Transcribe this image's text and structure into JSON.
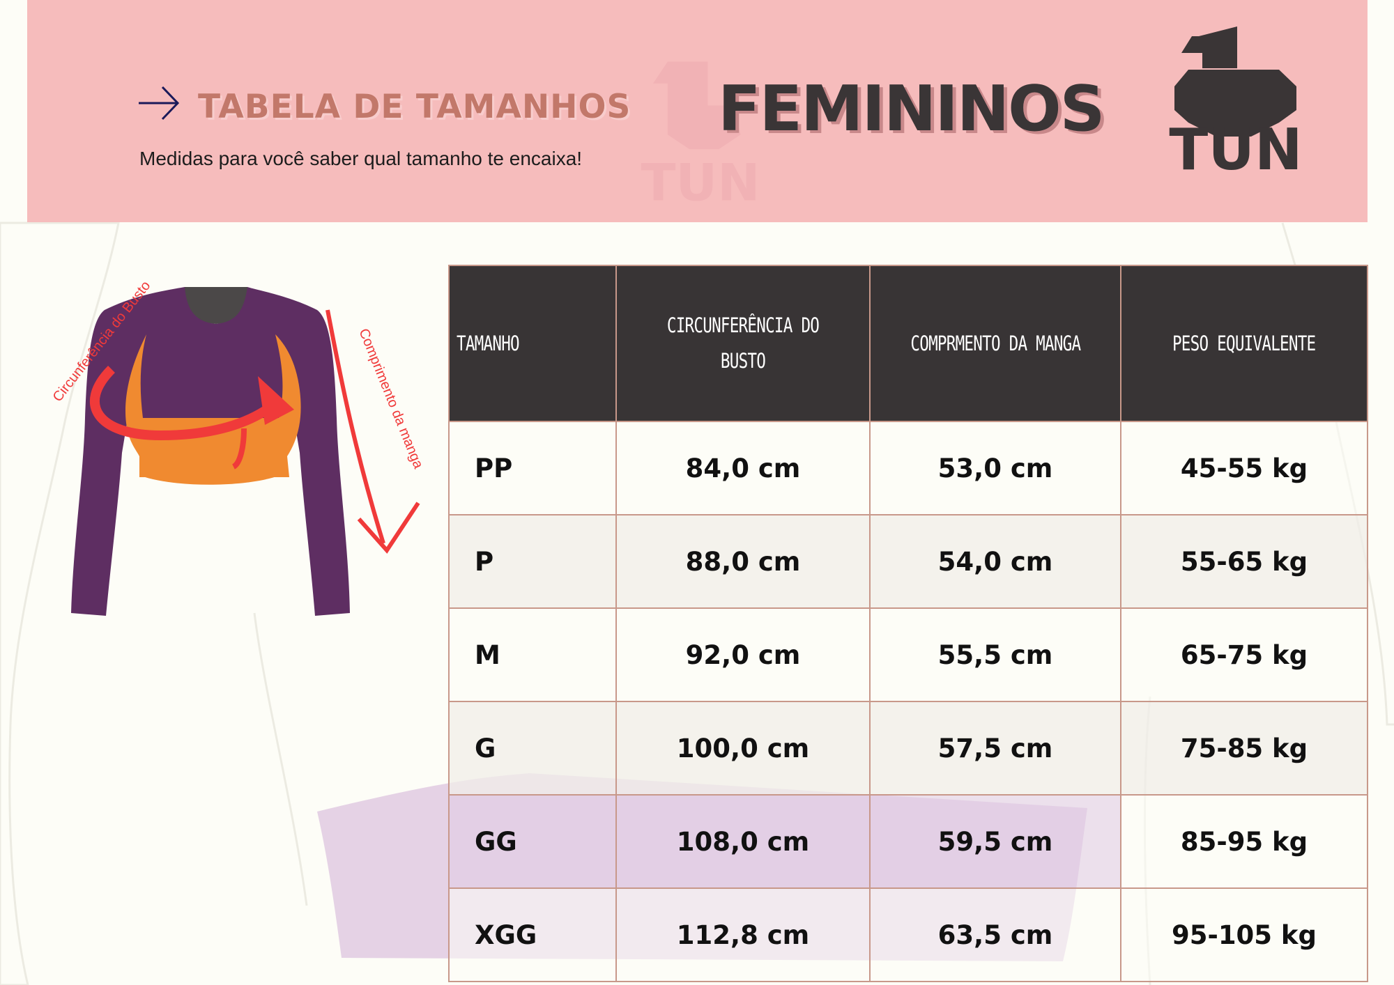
{
  "header": {
    "title": "TABELA DE TAMANHOS",
    "subtitle": "Medidas para você saber qual tamanho te encaixa!",
    "category": "FEMININOS",
    "logo_text": "TUN",
    "logo_number": "1"
  },
  "garment": {
    "bust_label": "Circunferência do Busto",
    "sleeve_label": "Comprimento da manga"
  },
  "table": {
    "headers": [
      "TAMANHO",
      "CIRCUNFERÊNCIA DO BUSTO",
      "COMPRMENTO DA MANGA",
      "PESO EQUIVALENTE"
    ],
    "rows": [
      {
        "size": "PP",
        "bust": "84,0 cm",
        "sleeve": "53,0 cm",
        "weight": "45-55 kg"
      },
      {
        "size": "P",
        "bust": "88,0 cm",
        "sleeve": "54,0 cm",
        "weight": "55-65 kg"
      },
      {
        "size": "M",
        "bust": "92,0 cm",
        "sleeve": "55,5 cm",
        "weight": "65-75 kg"
      },
      {
        "size": "G",
        "bust": "100,0 cm",
        "sleeve": "57,5 cm",
        "weight": "75-85 kg"
      },
      {
        "size": "GG",
        "bust": "108,0 cm",
        "sleeve": "59,5 cm",
        "weight": "85-95 kg"
      },
      {
        "size": "XGG",
        "bust": "112,8 cm",
        "sleeve": "63,5 cm",
        "weight": "95-105 kg"
      }
    ]
  },
  "colors": {
    "header_bg": "#f6bcbc",
    "title": "#c2786a",
    "dark": "#383435",
    "garment_body": "#5e2e62",
    "garment_accent": "#f08a30",
    "annotation": "#f03a3a"
  },
  "icons": [
    "arrow-right-icon",
    "ton-logo",
    "garment-illustration"
  ]
}
